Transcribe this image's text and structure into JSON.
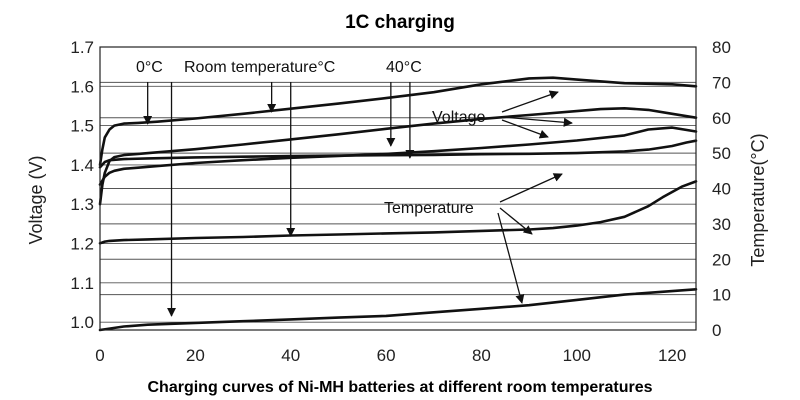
{
  "chart_data": {
    "type": "line",
    "title": "1C charging",
    "caption": "Charging curves of Ni-MH batteries at different room temperatures",
    "xlabel": "",
    "ylabel_left": "Voltage (V)",
    "ylabel_right": "Temperature(°C)",
    "xlim": [
      0,
      125
    ],
    "ylim_left": [
      0.98,
      1.7
    ],
    "ylim_right": [
      0,
      80
    ],
    "x_ticks": [
      0,
      20,
      40,
      60,
      80,
      100,
      120
    ],
    "y_left_ticks": [
      1.0,
      1.1,
      1.2,
      1.3,
      1.4,
      1.5,
      1.6,
      1.7
    ],
    "y_left_tick_labels": [
      "1.0",
      "1.1",
      "1.2",
      "1.3",
      "1.4",
      "1.5",
      "1.6",
      "1.7"
    ],
    "y_right_ticks": [
      0,
      10,
      20,
      30,
      40,
      50,
      60,
      70,
      80
    ],
    "grid": "horizontal",
    "series": [
      {
        "group": "voltage",
        "condition": "0°C",
        "axis": "left",
        "x": [
          0,
          0.5,
          1,
          2,
          3,
          5,
          8,
          12,
          20,
          30,
          40,
          50,
          60,
          70,
          80,
          90,
          95,
          100,
          110,
          120,
          125
        ],
        "y": [
          1.4,
          1.44,
          1.47,
          1.49,
          1.5,
          1.505,
          1.507,
          1.51,
          1.518,
          1.53,
          1.543,
          1.556,
          1.57,
          1.585,
          1.605,
          1.62,
          1.622,
          1.617,
          1.608,
          1.605,
          1.6
        ]
      },
      {
        "group": "voltage",
        "condition": "Room temperature°C",
        "axis": "left",
        "x": [
          0,
          0.5,
          1,
          2,
          3,
          5,
          8,
          12,
          20,
          30,
          40,
          50,
          60,
          70,
          80,
          90,
          100,
          105,
          110,
          115,
          120,
          125
        ],
        "y": [
          1.3,
          1.35,
          1.38,
          1.41,
          1.42,
          1.425,
          1.428,
          1.432,
          1.44,
          1.452,
          1.465,
          1.478,
          1.492,
          1.505,
          1.517,
          1.527,
          1.537,
          1.542,
          1.544,
          1.54,
          1.53,
          1.52
        ]
      },
      {
        "group": "voltage",
        "condition": "40°C",
        "axis": "left",
        "x": [
          0,
          1,
          2,
          3,
          5,
          8,
          12,
          20,
          30,
          40,
          50,
          60,
          70,
          80,
          90,
          100,
          110,
          115,
          120,
          125
        ],
        "y": [
          1.35,
          1.37,
          1.38,
          1.385,
          1.39,
          1.393,
          1.397,
          1.405,
          1.412,
          1.418,
          1.423,
          1.428,
          1.435,
          1.443,
          1.452,
          1.462,
          1.475,
          1.49,
          1.495,
          1.485
        ]
      },
      {
        "group": "temperature",
        "condition": "0°C",
        "axis": "right",
        "x": [
          0,
          5,
          10,
          20,
          30,
          40,
          50,
          60,
          70,
          80,
          90,
          100,
          110,
          120,
          125
        ],
        "y": [
          0,
          1.0,
          1.5,
          2.0,
          2.5,
          3.0,
          3.5,
          4.0,
          5.0,
          6.0,
          7.0,
          8.5,
          10.0,
          11.0,
          11.5
        ]
      },
      {
        "group": "temperature",
        "condition": "Room temperature°C",
        "axis": "right",
        "x": [
          0,
          1,
          2,
          5,
          10,
          20,
          30,
          40,
          50,
          60,
          70,
          80,
          90,
          95,
          100,
          105,
          110,
          115,
          118,
          122,
          125
        ],
        "y": [
          24.5,
          25.0,
          25.2,
          25.4,
          25.6,
          26.0,
          26.3,
          26.7,
          27.0,
          27.3,
          27.6,
          28.0,
          28.4,
          28.8,
          29.5,
          30.5,
          32.0,
          35.0,
          37.5,
          40.5,
          42.0
        ]
      },
      {
        "group": "temperature",
        "condition": "40°C",
        "axis": "right",
        "x": [
          0,
          1,
          2,
          5,
          10,
          20,
          30,
          40,
          50,
          60,
          70,
          80,
          90,
          100,
          110,
          115,
          120,
          123,
          125
        ],
        "y": [
          46.0,
          47.5,
          48.0,
          48.3,
          48.5,
          48.8,
          49.0,
          49.2,
          49.3,
          49.4,
          49.5,
          49.7,
          49.8,
          50.0,
          50.5,
          51.0,
          52.0,
          53.0,
          53.5
        ]
      }
    ],
    "labels": {
      "t0c": "0°C",
      "troom": "Room temperature°C",
      "t40c": "40°C",
      "voltage": "Voltage",
      "temperature": "Temperature"
    },
    "vertical_marker_x": [
      10,
      15,
      36,
      40,
      61,
      65
    ],
    "colors": {
      "line": "#111111",
      "grid": "#555555",
      "background": "#ffffff"
    }
  }
}
